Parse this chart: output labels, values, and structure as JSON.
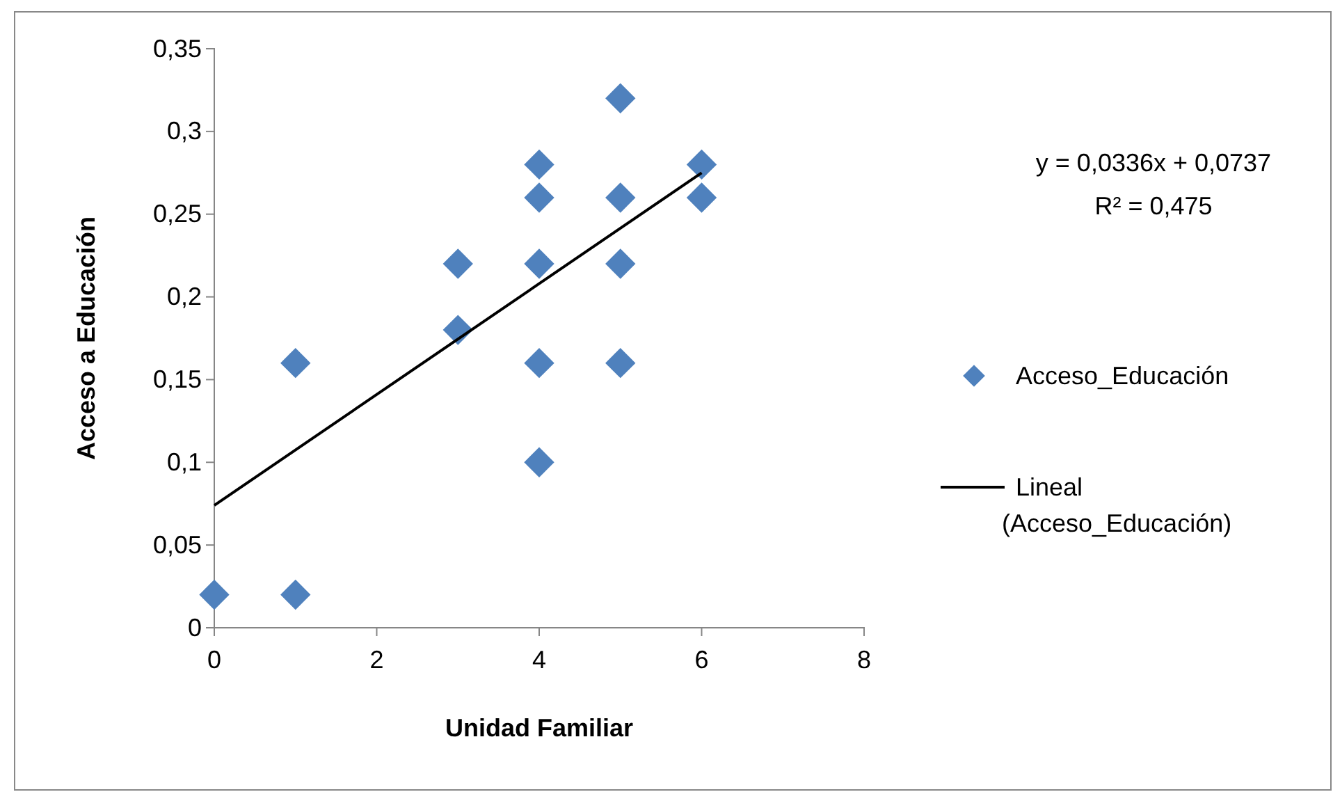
{
  "chart_data": {
    "type": "scatter",
    "xlabel": "Unidad Familiar",
    "ylabel": "Acceso a Educación",
    "xlim": [
      0,
      8
    ],
    "xticks": [
      0,
      2,
      4,
      6,
      8
    ],
    "ylim": [
      0,
      0.35
    ],
    "yticks": [
      {
        "value": 0,
        "label": "0"
      },
      {
        "value": 0.05,
        "label": "0,05"
      },
      {
        "value": 0.1,
        "label": "0,1"
      },
      {
        "value": 0.15,
        "label": "0,15"
      },
      {
        "value": 0.2,
        "label": "0,2"
      },
      {
        "value": 0.25,
        "label": "0,25"
      },
      {
        "value": 0.3,
        "label": "0,3"
      },
      {
        "value": 0.35,
        "label": "0,35"
      }
    ],
    "grid": false,
    "legend": "right",
    "marker": "diamond",
    "series": [
      {
        "name": "Acceso_Educación",
        "color": "#4f81bd",
        "x": [
          0,
          1,
          1,
          3,
          3,
          4,
          4,
          4,
          4,
          4,
          5,
          5,
          5,
          5,
          6,
          6
        ],
        "values": [
          0.02,
          0.02,
          0.16,
          0.22,
          0.18,
          0.28,
          0.26,
          0.22,
          0.16,
          0.1,
          0.32,
          0.26,
          0.22,
          0.16,
          0.28,
          0.26
        ]
      },
      {
        "name": "Lineal (Acceso_Educación)",
        "type": "line",
        "color": "#000000",
        "line_style": "solid",
        "marker": "none",
        "x": [
          0,
          6
        ],
        "values": [
          0.074,
          0.275
        ]
      }
    ],
    "annotations": [
      "y = 0,0336x + 0,0737",
      "R² = 0,475"
    ]
  }
}
